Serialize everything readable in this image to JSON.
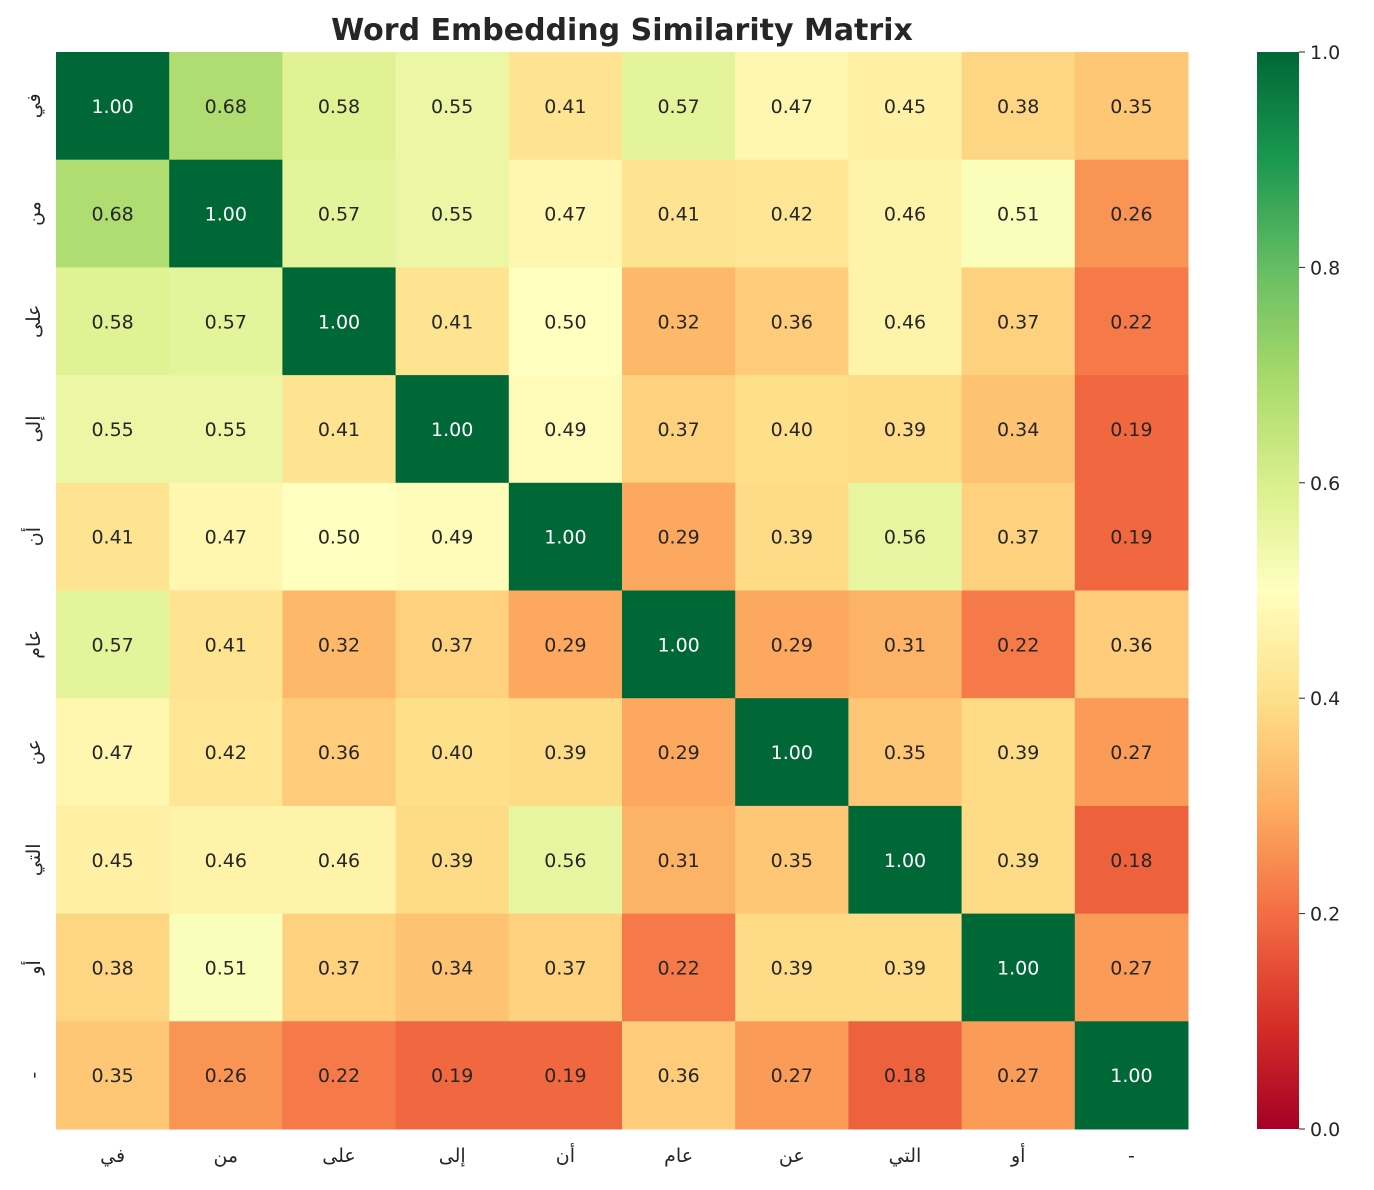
{
  "chart_data": {
    "type": "heatmap",
    "title": "Word Embedding Similarity Matrix",
    "colormap": "RdYlGn",
    "vmin": 0.0,
    "vmax": 1.0,
    "x_labels": [
      "في",
      "من",
      "على",
      "إلى",
      "أن",
      "عام",
      "عن",
      "التي",
      "أو",
      "-"
    ],
    "y_labels": [
      "في",
      "من",
      "على",
      "إلى",
      "أن",
      "عام",
      "عن",
      "التي",
      "أو",
      "-"
    ],
    "values": [
      [
        1.0,
        0.68,
        0.58,
        0.55,
        0.41,
        0.57,
        0.47,
        0.45,
        0.38,
        0.35
      ],
      [
        0.68,
        1.0,
        0.57,
        0.55,
        0.47,
        0.41,
        0.42,
        0.46,
        0.51,
        0.26
      ],
      [
        0.58,
        0.57,
        1.0,
        0.41,
        0.5,
        0.32,
        0.36,
        0.46,
        0.37,
        0.22
      ],
      [
        0.55,
        0.55,
        0.41,
        1.0,
        0.49,
        0.37,
        0.4,
        0.39,
        0.34,
        0.19
      ],
      [
        0.41,
        0.47,
        0.5,
        0.49,
        1.0,
        0.29,
        0.39,
        0.56,
        0.37,
        0.19
      ],
      [
        0.57,
        0.41,
        0.32,
        0.37,
        0.29,
        1.0,
        0.29,
        0.31,
        0.22,
        0.36
      ],
      [
        0.47,
        0.42,
        0.36,
        0.4,
        0.39,
        0.29,
        1.0,
        0.35,
        0.39,
        0.27
      ],
      [
        0.45,
        0.46,
        0.46,
        0.39,
        0.56,
        0.31,
        0.35,
        1.0,
        0.39,
        0.18
      ],
      [
        0.38,
        0.51,
        0.37,
        0.34,
        0.37,
        0.22,
        0.39,
        0.39,
        1.0,
        0.27
      ],
      [
        0.35,
        0.26,
        0.22,
        0.19,
        0.19,
        0.36,
        0.27,
        0.18,
        0.27,
        1.0
      ]
    ],
    "value_format": "0.00",
    "colorbar": {
      "ticks": [
        "0.0",
        "0.2",
        "0.4",
        "0.6",
        "0.8",
        "1.0"
      ]
    }
  }
}
